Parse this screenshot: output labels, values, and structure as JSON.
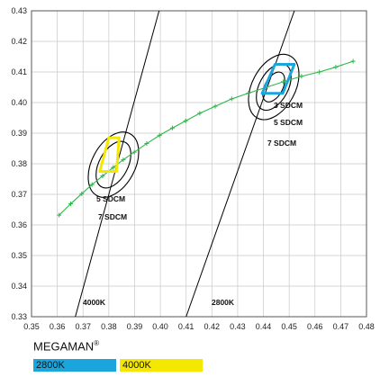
{
  "chart_data": {
    "type": "line",
    "xlim": [
      0.35,
      0.48
    ],
    "ylim": [
      0.33,
      0.43
    ],
    "x_ticks": [
      "0.35",
      "0.36",
      "0.37",
      "0.38",
      "0.39",
      "0.40",
      "0.41",
      "0.42",
      "0.43",
      "0.44",
      "0.45",
      "0.46",
      "0.47",
      "0.48"
    ],
    "y_ticks": [
      "0.33",
      "0.34",
      "0.35",
      "0.36",
      "0.37",
      "0.38",
      "0.39",
      "0.40",
      "0.41",
      "0.42",
      "0.43"
    ],
    "grid": true,
    "planckian_locus": {
      "color": "#2db84a",
      "points": [
        [
          0.3607,
          0.3632
        ],
        [
          0.3652,
          0.3669
        ],
        [
          0.3695,
          0.3702
        ],
        [
          0.3735,
          0.3732
        ],
        [
          0.3776,
          0.376
        ],
        [
          0.3817,
          0.3788
        ],
        [
          0.3856,
          0.3813
        ],
        [
          0.3899,
          0.3838
        ],
        [
          0.3947,
          0.3866
        ],
        [
          0.3997,
          0.3893
        ],
        [
          0.4047,
          0.3917
        ],
        [
          0.4098,
          0.394
        ],
        [
          0.4153,
          0.3965
        ],
        [
          0.4213,
          0.3988
        ],
        [
          0.4277,
          0.4012
        ],
        [
          0.4342,
          0.4031
        ],
        [
          0.4408,
          0.4049
        ],
        [
          0.4477,
          0.4068
        ],
        [
          0.4548,
          0.4086
        ],
        [
          0.4617,
          0.41
        ],
        [
          0.4681,
          0.4116
        ],
        [
          0.4748,
          0.4135
        ]
      ]
    },
    "cct_lines": [
      {
        "label": "4000K",
        "points": [
          [
            0.367,
            0.33
          ],
          [
            0.3995,
            0.43
          ]
        ]
      },
      {
        "label": "2800K",
        "points": [
          [
            0.41,
            0.33
          ],
          [
            0.452,
            0.43
          ]
        ]
      }
    ],
    "ellipses": [
      {
        "center": [
          0.3818,
          0.3797
        ],
        "steps": [
          5,
          7
        ],
        "labels": [
          "5 SDCM",
          "7 SDCM"
        ]
      },
      {
        "center": [
          0.444,
          0.4051
        ],
        "steps": [
          3,
          5,
          7
        ],
        "labels": [
          "3 SDCM",
          "5 SDCM",
          "7 SDCM"
        ]
      }
    ],
    "regions": [
      {
        "label": "4000K",
        "color": "#f5e800",
        "points": [
          [
            0.3765,
            0.3775
          ],
          [
            0.38,
            0.3885
          ],
          [
            0.384,
            0.3885
          ],
          [
            0.383,
            0.3775
          ]
        ]
      },
      {
        "label": "2800K",
        "color": "#1aa6dc",
        "points": [
          [
            0.4395,
            0.403
          ],
          [
            0.4445,
            0.4125
          ],
          [
            0.452,
            0.4125
          ],
          [
            0.4475,
            0.403
          ]
        ]
      }
    ],
    "legend": {
      "title": "MEGAMAN",
      "mark": "®",
      "items": [
        {
          "label": "2800K",
          "color": "#1aa6dc"
        },
        {
          "label": "4000K",
          "color": "#f5e800"
        }
      ]
    }
  }
}
